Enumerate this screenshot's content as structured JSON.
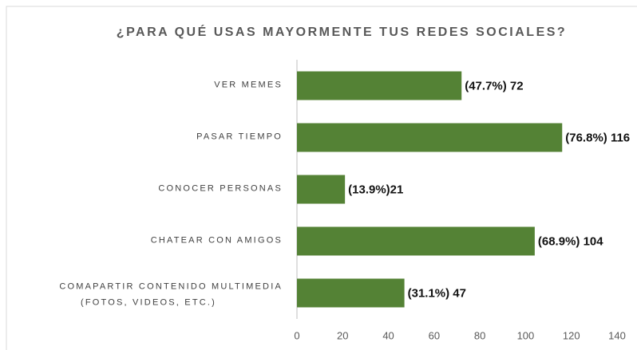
{
  "chart_data": {
    "type": "barh",
    "title": "¿PARA QUÉ USAS MAYORMENTE TUS REDES SOCIALES?",
    "categories": [
      "VER MEMES",
      "PASAR TIEMPO",
      "CONOCER PERSONAS",
      "CHATEAR CON AMIGOS",
      [
        "COMAPARTIR CONTENIDO MULTIMEDIA",
        "(FOTOS, VIDEOS, ETC.)"
      ]
    ],
    "values": [
      72,
      116,
      21,
      104,
      47
    ],
    "value_labels": [
      "(47.7%) 72",
      "(76.8%) 116",
      "(13.9%)21",
      "(68.9%) 104",
      "(31.1%) 47"
    ],
    "color": "#548235",
    "xlim": [
      0,
      140
    ],
    "xticks": [
      0,
      20,
      40,
      60,
      80,
      100,
      120,
      140
    ],
    "grid": false
  }
}
